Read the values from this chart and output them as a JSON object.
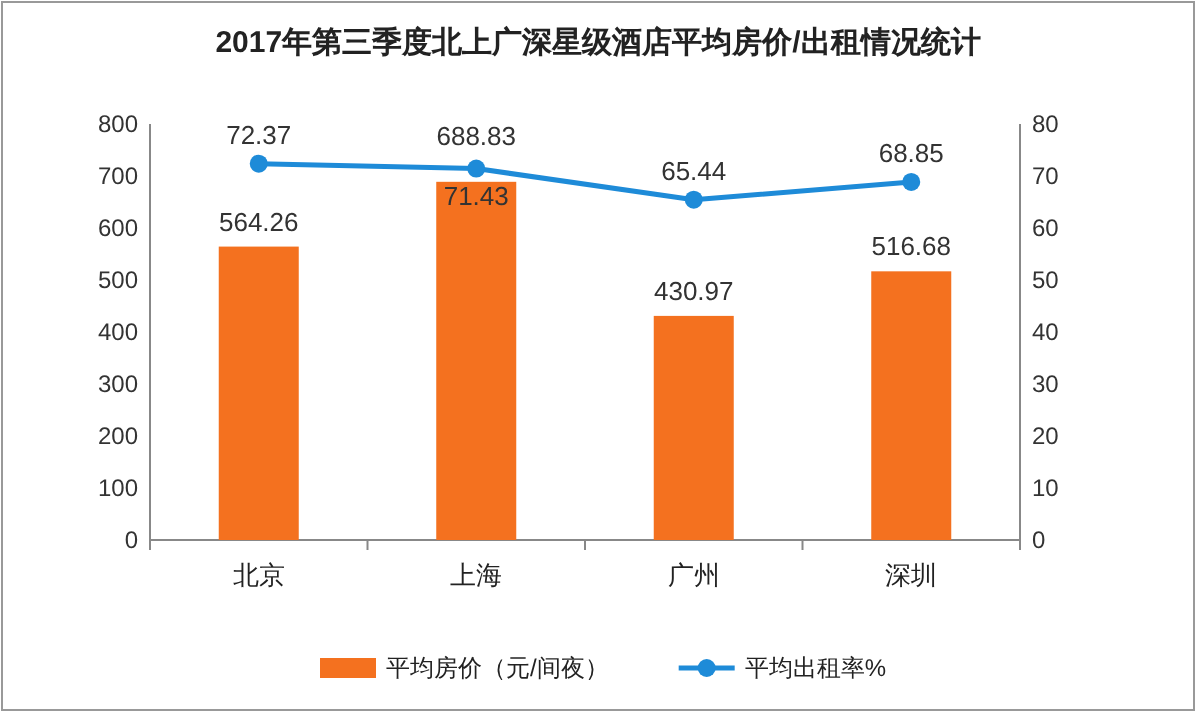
{
  "chart_data": {
    "type": "bar",
    "title": "2017年第三季度北上广深星级酒店平均房价/出租情况统计",
    "categories": [
      "北京",
      "上海",
      "广州",
      "深圳"
    ],
    "series": [
      {
        "name": "平均房价（元/间夜）",
        "color": "#f4711f",
        "values": [
          564.26,
          688.83,
          430.97,
          516.68
        ]
      },
      {
        "name": "平均出租率%",
        "type": "line",
        "axis": "y2",
        "color": "#1e8bd8",
        "values": [
          72.37,
          71.43,
          65.44,
          68.85
        ]
      }
    ],
    "ylim": [
      0,
      800
    ],
    "yticks": [
      0,
      100,
      200,
      300,
      400,
      500,
      600,
      700,
      800
    ],
    "y2lim": [
      0,
      80
    ],
    "y2ticks": [
      0,
      10,
      20,
      30,
      40,
      50,
      60,
      70,
      80
    ],
    "data_labels": true,
    "legend": "bottom",
    "marker": "circle",
    "grid": false
  }
}
